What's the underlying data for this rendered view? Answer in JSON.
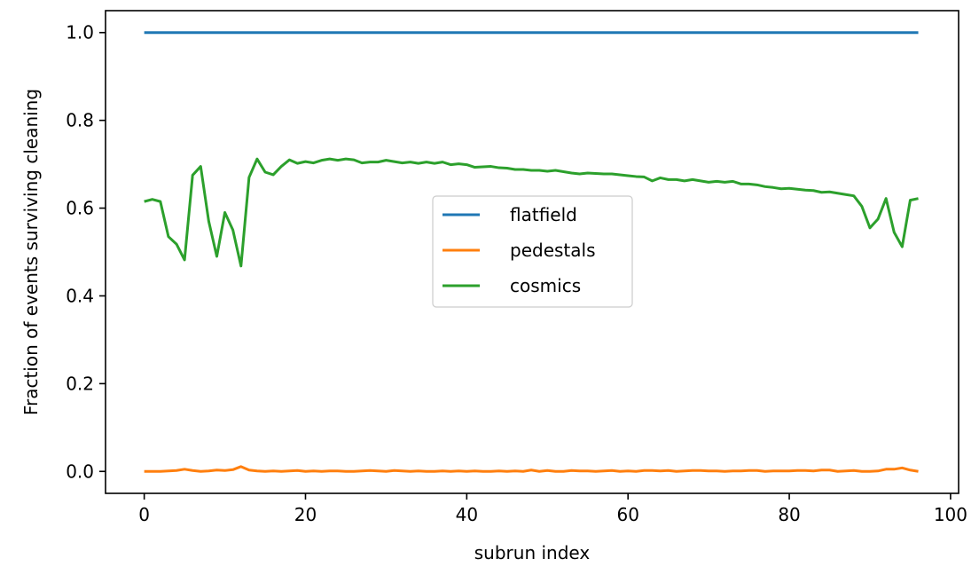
{
  "chart_data": {
    "type": "line",
    "xlabel": "subrun index",
    "ylabel": "Fraction of events surviving cleaning",
    "xlim": [
      -4.8,
      101
    ],
    "ylim": [
      -0.05,
      1.05
    ],
    "xticks": [
      0,
      20,
      40,
      60,
      80,
      100
    ],
    "yticks": [
      0.0,
      0.2,
      0.4,
      0.6,
      0.8,
      1.0
    ],
    "xtick_labels": [
      "0",
      "20",
      "40",
      "60",
      "80",
      "100"
    ],
    "ytick_labels": [
      "0.0",
      "0.2",
      "0.4",
      "0.6",
      "0.8",
      "1.0"
    ],
    "legend_position": "center",
    "grid": false,
    "x": [
      0,
      1,
      2,
      3,
      4,
      5,
      6,
      7,
      8,
      9,
      10,
      11,
      12,
      13,
      14,
      15,
      16,
      17,
      18,
      19,
      20,
      21,
      22,
      23,
      24,
      25,
      26,
      27,
      28,
      29,
      30,
      31,
      32,
      33,
      34,
      35,
      36,
      37,
      38,
      39,
      40,
      41,
      42,
      43,
      44,
      45,
      46,
      47,
      48,
      49,
      50,
      51,
      52,
      53,
      54,
      55,
      56,
      57,
      58,
      59,
      60,
      61,
      62,
      63,
      64,
      65,
      66,
      67,
      68,
      69,
      70,
      71,
      72,
      73,
      74,
      75,
      76,
      77,
      78,
      79,
      80,
      81,
      82,
      83,
      84,
      85,
      86,
      87,
      88,
      89,
      90,
      91,
      92,
      93,
      94,
      95,
      96
    ],
    "series": [
      {
        "name": "flatfield",
        "color": "#1f77b4",
        "values": [
          1.0,
          1.0,
          1.0,
          1.0,
          1.0,
          1.0,
          1.0,
          1.0,
          1.0,
          1.0,
          1.0,
          1.0,
          1.0,
          1.0,
          1.0,
          1.0,
          1.0,
          1.0,
          1.0,
          1.0,
          1.0,
          1.0,
          1.0,
          1.0,
          1.0,
          1.0,
          1.0,
          1.0,
          1.0,
          1.0,
          1.0,
          1.0,
          1.0,
          1.0,
          1.0,
          1.0,
          1.0,
          1.0,
          1.0,
          1.0,
          1.0,
          1.0,
          1.0,
          1.0,
          1.0,
          1.0,
          1.0,
          1.0,
          1.0,
          1.0,
          1.0,
          1.0,
          1.0,
          1.0,
          1.0,
          1.0,
          1.0,
          1.0,
          1.0,
          1.0,
          1.0,
          1.0,
          1.0,
          1.0,
          1.0,
          1.0,
          1.0,
          1.0,
          1.0,
          1.0,
          1.0,
          1.0,
          1.0,
          1.0,
          1.0,
          1.0,
          1.0,
          1.0,
          1.0,
          1.0,
          1.0,
          1.0,
          1.0,
          1.0,
          1.0,
          1.0,
          1.0,
          1.0,
          1.0,
          1.0,
          1.0,
          1.0,
          1.0,
          1.0,
          1.0,
          1.0,
          1.0
        ]
      },
      {
        "name": "pedestals",
        "color": "#ff7f0e",
        "values": [
          0.0,
          0.0,
          0.0,
          0.001,
          0.002,
          0.005,
          0.002,
          0.0,
          0.001,
          0.003,
          0.002,
          0.004,
          0.011,
          0.003,
          0.001,
          0.0,
          0.001,
          0.0,
          0.001,
          0.002,
          0.0,
          0.001,
          0.0,
          0.001,
          0.001,
          0.0,
          0.0,
          0.001,
          0.002,
          0.001,
          0.0,
          0.002,
          0.001,
          0.0,
          0.001,
          0.0,
          0.0,
          0.001,
          0.0,
          0.001,
          0.0,
          0.001,
          0.0,
          0.0,
          0.001,
          0.0,
          0.001,
          0.0,
          0.003,
          0.0,
          0.002,
          0.0,
          0.0,
          0.002,
          0.001,
          0.001,
          0.0,
          0.001,
          0.002,
          0.0,
          0.001,
          0.0,
          0.002,
          0.002,
          0.001,
          0.002,
          0.0,
          0.001,
          0.002,
          0.002,
          0.001,
          0.001,
          0.0,
          0.001,
          0.001,
          0.002,
          0.002,
          0.0,
          0.001,
          0.001,
          0.001,
          0.002,
          0.002,
          0.001,
          0.003,
          0.003,
          0.0,
          0.001,
          0.002,
          0.0,
          0.0,
          0.001,
          0.005,
          0.005,
          0.008,
          0.003,
          0.0
        ]
      },
      {
        "name": "cosmics",
        "color": "#2ca02c",
        "values": [
          0.615,
          0.62,
          0.615,
          0.535,
          0.518,
          0.482,
          0.675,
          0.695,
          0.57,
          0.49,
          0.59,
          0.55,
          0.468,
          0.67,
          0.712,
          0.682,
          0.676,
          0.695,
          0.71,
          0.702,
          0.706,
          0.703,
          0.709,
          0.712,
          0.709,
          0.712,
          0.71,
          0.703,
          0.705,
          0.705,
          0.709,
          0.706,
          0.703,
          0.705,
          0.702,
          0.705,
          0.702,
          0.705,
          0.699,
          0.701,
          0.699,
          0.693,
          0.694,
          0.695,
          0.692,
          0.691,
          0.688,
          0.688,
          0.686,
          0.686,
          0.684,
          0.686,
          0.683,
          0.68,
          0.678,
          0.68,
          0.679,
          0.678,
          0.678,
          0.676,
          0.674,
          0.672,
          0.671,
          0.662,
          0.669,
          0.665,
          0.665,
          0.662,
          0.665,
          0.662,
          0.659,
          0.661,
          0.659,
          0.661,
          0.655,
          0.655,
          0.653,
          0.649,
          0.647,
          0.644,
          0.645,
          0.643,
          0.641,
          0.64,
          0.636,
          0.637,
          0.634,
          0.631,
          0.628,
          0.604,
          0.555,
          0.575,
          0.622,
          0.545,
          0.512,
          0.618,
          0.622
        ]
      }
    ]
  }
}
